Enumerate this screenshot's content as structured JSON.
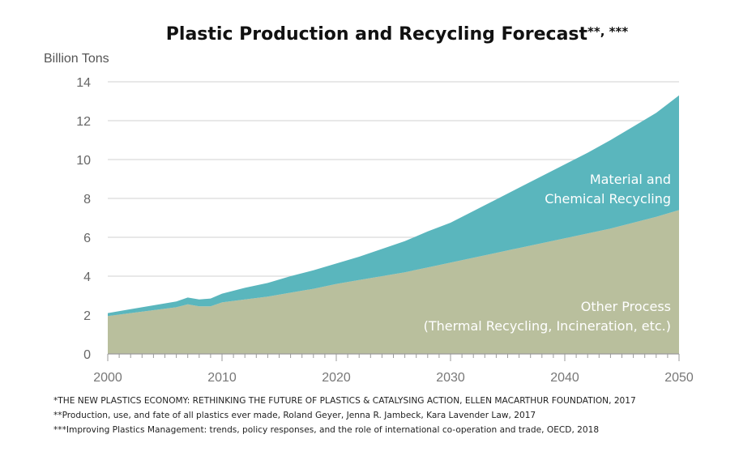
{
  "chart_data": {
    "type": "area",
    "stacked": true,
    "title": "Plastic Production and Recycling Forecast",
    "title_suffix": "**, ***",
    "ylabel": "Billion Tons",
    "xlabel": "",
    "xlim": [
      2000,
      2050
    ],
    "ylim": [
      0,
      14
    ],
    "x_ticks": [
      "2000",
      "2010",
      "2020",
      "2030",
      "2040",
      "2050"
    ],
    "y_ticks": [
      "0",
      "2",
      "4",
      "6",
      "8",
      "10",
      "12",
      "14"
    ],
    "grid": "horizontal",
    "x": [
      2000,
      2002,
      2004,
      2006,
      2007,
      2008,
      2009,
      2010,
      2012,
      2014,
      2016,
      2018,
      2020,
      2022,
      2024,
      2026,
      2028,
      2030,
      2032,
      2034,
      2036,
      2038,
      2040,
      2042,
      2044,
      2046,
      2048,
      2050
    ],
    "series": [
      {
        "name": "Other Process",
        "sublabel": "(Thermal Recycling, Incineration, etc.)",
        "color": "#b9bf9d",
        "values": [
          1.95,
          2.1,
          2.25,
          2.4,
          2.55,
          2.45,
          2.45,
          2.65,
          2.8,
          2.95,
          3.15,
          3.35,
          3.6,
          3.8,
          4.0,
          4.2,
          4.45,
          4.7,
          4.95,
          5.2,
          5.45,
          5.7,
          5.95,
          6.2,
          6.45,
          6.75,
          7.05,
          7.4
        ]
      },
      {
        "name": "Material and Chemical Recycling",
        "color": "#5ab6bd",
        "values": [
          0.15,
          0.2,
          0.25,
          0.3,
          0.35,
          0.35,
          0.4,
          0.45,
          0.6,
          0.7,
          0.85,
          0.95,
          1.05,
          1.2,
          1.4,
          1.6,
          1.85,
          2.05,
          2.4,
          2.75,
          3.1,
          3.45,
          3.8,
          4.15,
          4.55,
          4.95,
          5.35,
          5.9
        ]
      }
    ]
  },
  "footnotes": [
    "*THE NEW PLASTICS ECONOMY: RETHINKING THE FUTURE OF PLASTICS & CATALYSING ACTION, ELLEN MACARTHUR FOUNDATION, 2017",
    "**Production, use, and fate of all plastics ever made, Roland Geyer, Jenna R. Jambeck, Kara Lavender Law, 2017",
    "***Improving Plastics Management: trends, policy responses, and the role of international co-operation and trade, OECD, 2018"
  ],
  "colors": {
    "grid": "#d9d9d9",
    "axis": "#9a9a9a"
  }
}
